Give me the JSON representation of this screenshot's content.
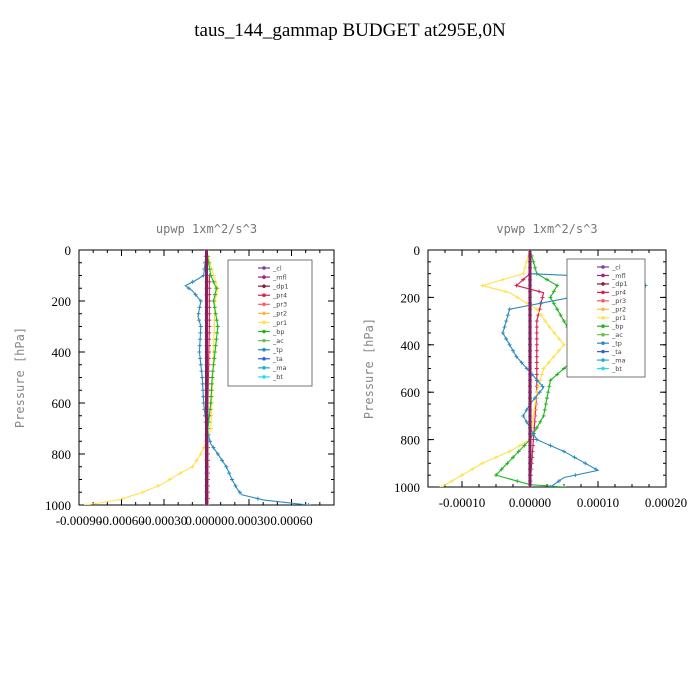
{
  "title": "taus_144_gammap  BUDGET at295E,0N",
  "chart_data": [
    {
      "type": "line",
      "title": "upwp   1xm^2/s^3",
      "ylabel": "Pressure [hPa]",
      "xlim": [
        -0.0009,
        0.0009
      ],
      "ylim": [
        1000,
        0
      ],
      "xticks": [
        -0.0009,
        -0.0006,
        -0.0003,
        0.0,
        0.0003,
        0.0006
      ],
      "xtick_labels": [
        "-0.00090",
        "-0.00060",
        "-0.00030",
        "0.00000",
        "0.00030",
        "0.00060"
      ],
      "yticks": [
        0,
        200,
        400,
        600,
        800,
        1000
      ],
      "ytick_labels": [
        "0",
        "200",
        "400",
        "600",
        "800",
        "1000"
      ],
      "legend_position": "top-right",
      "series": [
        {
          "name": "_cl",
          "color": "#7b3fa0",
          "points": [
            [
              0,
              0
            ],
            [
              0,
              1000
            ]
          ]
        },
        {
          "name": "_mfl",
          "color": "#a0208f",
          "points": [
            [
              0,
              0
            ],
            [
              0,
              1000
            ]
          ]
        },
        {
          "name": "_dp1",
          "color": "#8b1a3a",
          "points": [
            [
              0,
              0
            ],
            [
              0,
              1000
            ]
          ]
        },
        {
          "name": "_pr4",
          "color": "#d6204d",
          "points": [
            [
              2e-05,
              100
            ],
            [
              2e-05,
              300
            ],
            [
              1e-05,
              600
            ],
            [
              1e-05,
              1000
            ]
          ]
        },
        {
          "name": "_pr3",
          "color": "#ff5a5a",
          "points": [
            [
              0,
              0
            ],
            [
              0,
              1000
            ]
          ]
        },
        {
          "name": "_pr2",
          "color": "#ffb84a",
          "points": [
            [
              0,
              0
            ],
            [
              0,
              1000
            ]
          ]
        },
        {
          "name": "_pr1",
          "color": "#ffe14d",
          "points": [
            [
              0,
              0
            ],
            [
              5e-05,
              100
            ],
            [
              8e-05,
              150
            ],
            [
              6e-05,
              200
            ],
            [
              5e-05,
              400
            ],
            [
              3e-05,
              700
            ],
            [
              0,
              750
            ],
            [
              -4e-05,
              800
            ],
            [
              -0.0001,
              850
            ],
            [
              -0.0002,
              880
            ],
            [
              -0.00032,
              920
            ],
            [
              -0.00045,
              950
            ],
            [
              -0.00062,
              980
            ],
            [
              -0.00085,
              1000
            ]
          ]
        },
        {
          "name": "_bp",
          "color": "#22b322",
          "points": [
            [
              0,
              0
            ],
            [
              3e-05,
              100
            ],
            [
              7e-05,
              150
            ],
            [
              5e-05,
              200
            ],
            [
              8e-05,
              300
            ],
            [
              6e-05,
              400
            ],
            [
              4e-05,
              500
            ],
            [
              3e-05,
              600
            ],
            [
              1e-05,
              700
            ],
            [
              0,
              800
            ],
            [
              0,
              1000
            ]
          ]
        },
        {
          "name": "_ac",
          "color": "#6bc24b",
          "points": [
            [
              0,
              0
            ],
            [
              0,
              1000
            ]
          ]
        },
        {
          "name": "_tp",
          "color": "#2a8bc0",
          "points": [
            [
              0,
              0
            ],
            [
              -2e-05,
              100
            ],
            [
              -8e-05,
              120
            ],
            [
              -0.00015,
              140
            ],
            [
              -0.0001,
              160
            ],
            [
              -4e-05,
              200
            ],
            [
              -6e-05,
              260
            ],
            [
              -4e-05,
              300
            ],
            [
              -5e-05,
              400
            ],
            [
              -3e-05,
              500
            ],
            [
              -2e-05,
              600
            ],
            [
              0,
              700
            ],
            [
              3e-05,
              760
            ],
            [
              8e-05,
              800
            ],
            [
              0.00014,
              850
            ],
            [
              0.00018,
              900
            ],
            [
              0.00022,
              940
            ],
            [
              0.00025,
              960
            ],
            [
              0.0004,
              980
            ],
            [
              0.00072,
              1000
            ]
          ]
        },
        {
          "name": "_ta",
          "color": "#3060d0",
          "points": [
            [
              0,
              0
            ],
            [
              0,
              1000
            ]
          ]
        },
        {
          "name": "_ma",
          "color": "#20b0d0",
          "points": [
            [
              0,
              0
            ],
            [
              0,
              1000
            ]
          ]
        },
        {
          "name": "_bt",
          "color": "#2ad8ee",
          "points": [
            [
              0,
              0
            ],
            [
              0,
              1000
            ]
          ]
        }
      ]
    },
    {
      "type": "line",
      "title": "vpwp   1xm^2/s^3",
      "ylabel": "Pressure [hPa]",
      "xlim": [
        -0.00015,
        0.0002
      ],
      "ylim": [
        1000,
        0
      ],
      "xticks": [
        -0.0001,
        0.0,
        0.0001,
        0.0002
      ],
      "xtick_labels": [
        "-0.00010",
        "0.00000",
        "0.00010",
        "0.00020"
      ],
      "yticks": [
        0,
        200,
        400,
        600,
        800,
        1000
      ],
      "ytick_labels": [
        "0",
        "200",
        "400",
        "600",
        "800",
        "1000"
      ],
      "legend_position": "top-right",
      "series": [
        {
          "name": "_cl",
          "color": "#7b3fa0",
          "points": [
            [
              0,
              0
            ],
            [
              0,
              1000
            ]
          ]
        },
        {
          "name": "_mfl",
          "color": "#a0208f",
          "points": [
            [
              0,
              0
            ],
            [
              0,
              1000
            ]
          ]
        },
        {
          "name": "_dp1",
          "color": "#8b1a3a",
          "points": [
            [
              0,
              0
            ],
            [
              0,
              1000
            ]
          ]
        },
        {
          "name": "_pr4",
          "color": "#d6204d",
          "points": [
            [
              0,
              100
            ],
            [
              -2e-05,
              150
            ],
            [
              2e-05,
              180
            ],
            [
              1e-05,
              300
            ],
            [
              1e-05,
              600
            ],
            [
              0,
              1000
            ]
          ]
        },
        {
          "name": "_pr3",
          "color": "#ff5a5a",
          "points": [
            [
              0,
              0
            ],
            [
              0,
              1000
            ]
          ]
        },
        {
          "name": "_pr2",
          "color": "#ffb84a",
          "points": [
            [
              0,
              0
            ],
            [
              0,
              1000
            ]
          ]
        },
        {
          "name": "_pr1",
          "color": "#ffe14d",
          "points": [
            [
              0,
              0
            ],
            [
              -1e-05,
              100
            ],
            [
              -7e-05,
              150
            ],
            [
              -3e-05,
              180
            ],
            [
              1e-05,
              250
            ],
            [
              3e-05,
              330
            ],
            [
              5e-05,
              400
            ],
            [
              2e-05,
              500
            ],
            [
              1e-05,
              600
            ],
            [
              0,
              800
            ],
            [
              -3e-05,
              850
            ],
            [
              -7e-05,
              900
            ],
            [
              -0.0001,
              950
            ],
            [
              -0.00013,
              1000
            ]
          ]
        },
        {
          "name": "_bp",
          "color": "#22b322",
          "points": [
            [
              0,
              0
            ],
            [
              1e-05,
              100
            ],
            [
              4e-05,
              150
            ],
            [
              3e-05,
              200
            ],
            [
              6e-05,
              350
            ],
            [
              7e-05,
              450
            ],
            [
              3e-05,
              550
            ],
            [
              2e-05,
              700
            ],
            [
              0,
              800
            ],
            [
              -5e-05,
              950
            ],
            [
              0,
              990
            ],
            [
              5e-05,
              1000
            ]
          ]
        },
        {
          "name": "_ac",
          "color": "#6bc24b",
          "points": [
            [
              0,
              0
            ],
            [
              0,
              1000
            ]
          ]
        },
        {
          "name": "_tp",
          "color": "#2a8bc0",
          "points": [
            [
              0,
              0
            ],
            [
              0,
              100
            ],
            [
              8e-05,
              110
            ],
            [
              0.00017,
              150
            ],
            [
              6e-05,
              200
            ],
            [
              -3e-05,
              250
            ],
            [
              -4e-05,
              350
            ],
            [
              -2e-05,
              450
            ],
            [
              2e-05,
              580
            ],
            [
              0,
              650
            ],
            [
              -1e-05,
              700
            ],
            [
              1e-05,
              800
            ],
            [
              5e-05,
              850
            ],
            [
              0.0001,
              930
            ],
            [
              5e-05,
              960
            ],
            [
              3e-05,
              1000
            ]
          ]
        },
        {
          "name": "_ta",
          "color": "#3060d0",
          "points": [
            [
              0,
              0
            ],
            [
              0,
              1000
            ]
          ]
        },
        {
          "name": "_ma",
          "color": "#20b0d0",
          "points": [
            [
              0,
              0
            ],
            [
              0,
              1000
            ]
          ]
        },
        {
          "name": "_bt",
          "color": "#2ad8ee",
          "points": [
            [
              0,
              0
            ],
            [
              0,
              1000
            ]
          ]
        }
      ]
    }
  ]
}
